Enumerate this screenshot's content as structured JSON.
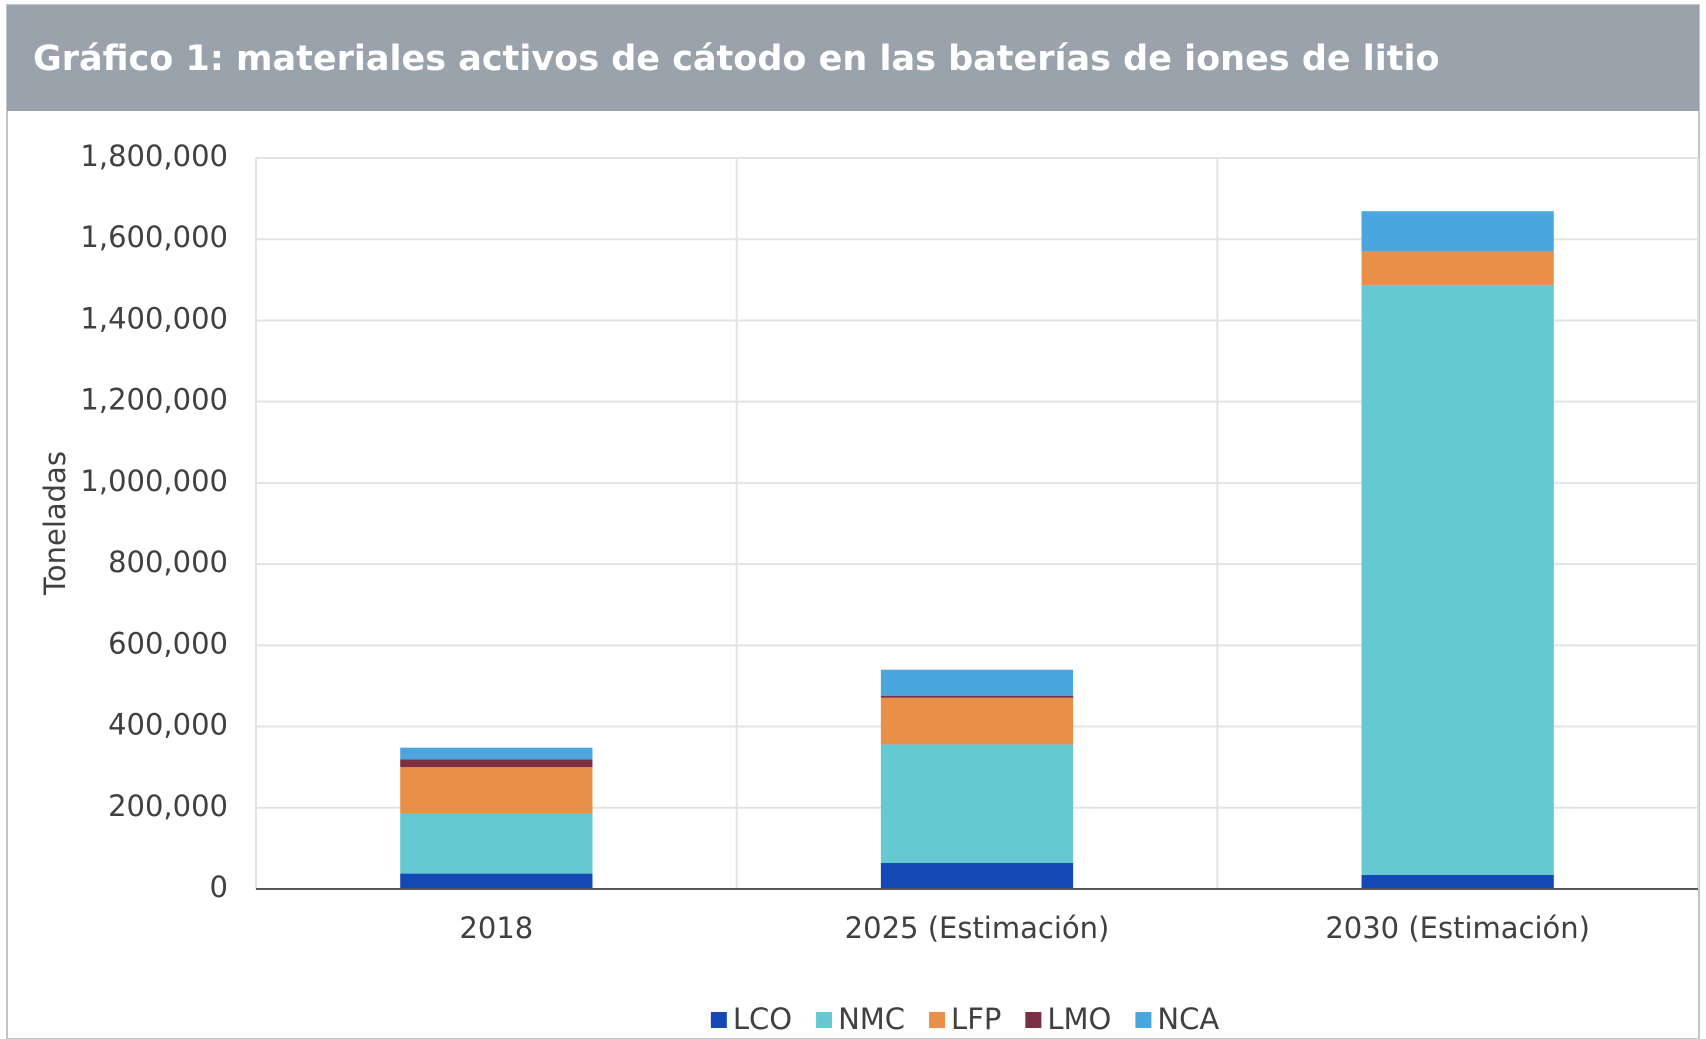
{
  "chart_data": {
    "type": "stacked_bar",
    "title": "Gráfico 1: materiales activos de cátodo en las baterías de iones de litio",
    "y_label": "Toneladas",
    "categories": [
      "2018",
      "2025 (Estimación)",
      "2030 (Estimación)"
    ],
    "series": [
      {
        "name": "LCO",
        "color": "#1448b4",
        "values": [
          38000,
          64000,
          35000
        ]
      },
      {
        "name": "NMC",
        "color": "#66c8d0",
        "values": [
          147000,
          292000,
          1452000
        ]
      },
      {
        "name": "LFP",
        "color": "#e8904a",
        "values": [
          115000,
          115000,
          83000
        ]
      },
      {
        "name": "LMO",
        "color": "#7a2f45",
        "values": [
          19000,
          5000,
          0
        ]
      },
      {
        "name": "NCA",
        "color": "#4aa6dc",
        "values": [
          29000,
          64000,
          99000
        ]
      }
    ],
    "ylim": [
      0,
      1800000
    ],
    "yticks": [
      0,
      {
        "value": 200000,
        "label": "200,000"
      },
      {
        "value": 400000,
        "label": "400,000"
      },
      {
        "value": 600000,
        "label": "600,000"
      },
      {
        "value": 800000,
        "label": "800,000"
      },
      {
        "value": 1000000,
        "label": "1,000,000"
      },
      {
        "value": 1200000,
        "label": "1,200,000"
      },
      {
        "value": 1400000,
        "label": "1,400,000"
      },
      {
        "value": 1600000,
        "label": "1,600,000"
      },
      {
        "value": 1800000,
        "label": "1,800,000"
      }
    ],
    "grid": true
  }
}
